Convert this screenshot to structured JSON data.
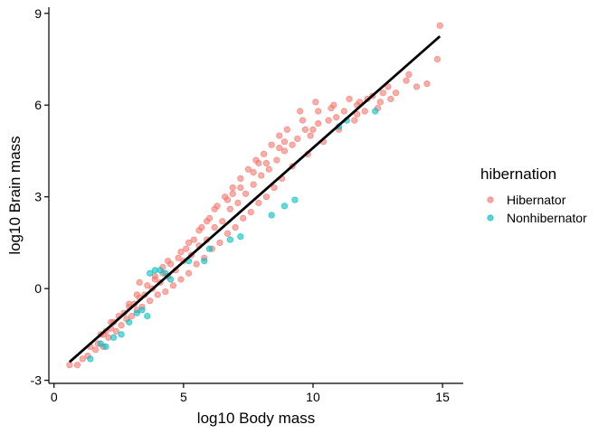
{
  "chart_data": {
    "type": "scatter",
    "title": "",
    "xlabel": "log10 Body mass",
    "ylabel": "log10 Brain mass",
    "xlim": [
      -0.2,
      15.8
    ],
    "ylim": [
      -3.1,
      9.2
    ],
    "xticks": [
      0,
      5,
      10,
      15
    ],
    "yticks": [
      -3,
      0,
      3,
      6,
      9
    ],
    "xtick_labels": [
      "0",
      "5",
      "10",
      "15"
    ],
    "ytick_labels": [
      "-3",
      "0",
      "3",
      "6",
      "9"
    ],
    "grid": false,
    "legend": {
      "title": "hibernation",
      "placement": "right",
      "entries": [
        "Hibernator",
        "Nonhibernator"
      ]
    },
    "series": [
      {
        "name": "Hibernator",
        "color": "#F8766D",
        "points": [
          [
            0.6,
            -2.5
          ],
          [
            0.9,
            -2.5
          ],
          [
            1.1,
            -2.3
          ],
          [
            1.3,
            -2.2
          ],
          [
            1.4,
            -1.9
          ],
          [
            1.6,
            -2.0
          ],
          [
            1.7,
            -1.8
          ],
          [
            1.8,
            -1.5
          ],
          [
            1.9,
            -1.9
          ],
          [
            2.0,
            -1.4
          ],
          [
            2.1,
            -1.6
          ],
          [
            2.2,
            -1.3
          ],
          [
            2.3,
            -1.1
          ],
          [
            2.4,
            -1.4
          ],
          [
            2.5,
            -0.9
          ],
          [
            2.6,
            -1.2
          ],
          [
            2.7,
            -0.8
          ],
          [
            2.8,
            -1.0
          ],
          [
            2.9,
            -0.6
          ],
          [
            3.0,
            -0.9
          ],
          [
            3.1,
            -0.5
          ],
          [
            3.2,
            -0.7
          ],
          [
            3.3,
            -0.3
          ],
          [
            3.4,
            -0.6
          ],
          [
            3.5,
            -0.2
          ],
          [
            3.6,
            0.1
          ],
          [
            3.7,
            -0.4
          ],
          [
            3.8,
            0.0
          ],
          [
            3.9,
            0.3
          ],
          [
            4.0,
            -0.2
          ],
          [
            4.1,
            0.2
          ],
          [
            4.2,
            0.5
          ],
          [
            4.3,
            -0.1
          ],
          [
            4.4,
            0.4
          ],
          [
            4.5,
            0.8
          ],
          [
            4.6,
            0.1
          ],
          [
            4.7,
            0.6
          ],
          [
            4.8,
            1.0
          ],
          [
            4.9,
            0.3
          ],
          [
            5.0,
            0.9
          ],
          [
            5.1,
            1.3
          ],
          [
            5.2,
            0.5
          ],
          [
            5.3,
            1.1
          ],
          [
            5.4,
            1.6
          ],
          [
            5.5,
            0.8
          ],
          [
            5.6,
            1.4
          ],
          [
            5.7,
            2.0
          ],
          [
            5.8,
            1.0
          ],
          [
            5.9,
            1.6
          ],
          [
            6.0,
            2.3
          ],
          [
            6.1,
            1.3
          ],
          [
            6.2,
            2.0
          ],
          [
            6.3,
            2.7
          ],
          [
            6.4,
            1.5
          ],
          [
            6.5,
            2.2
          ],
          [
            6.6,
            3.0
          ],
          [
            6.7,
            1.8
          ],
          [
            6.8,
            2.6
          ],
          [
            6.9,
            3.3
          ],
          [
            7.0,
            2.0
          ],
          [
            7.1,
            2.8
          ],
          [
            7.2,
            3.6
          ],
          [
            7.3,
            2.3
          ],
          [
            7.4,
            3.1
          ],
          [
            7.5,
            3.9
          ],
          [
            7.6,
            2.5
          ],
          [
            7.7,
            3.4
          ],
          [
            7.8,
            4.2
          ],
          [
            7.9,
            2.8
          ],
          [
            8.0,
            3.7
          ],
          [
            8.1,
            4.4
          ],
          [
            8.2,
            3.0
          ],
          [
            8.3,
            3.9
          ],
          [
            8.4,
            4.7
          ],
          [
            8.5,
            3.3
          ],
          [
            8.6,
            4.2
          ],
          [
            8.7,
            5.0
          ],
          [
            8.8,
            3.6
          ],
          [
            8.9,
            4.5
          ],
          [
            9.0,
            5.2
          ],
          [
            9.2,
            4.0
          ],
          [
            9.4,
            4.9
          ],
          [
            9.6,
            5.5
          ],
          [
            9.8,
            4.4
          ],
          [
            10.0,
            5.2
          ],
          [
            10.2,
            5.8
          ],
          [
            10.4,
            4.8
          ],
          [
            10.6,
            5.5
          ],
          [
            10.8,
            6.0
          ],
          [
            11.0,
            5.2
          ],
          [
            11.2,
            5.8
          ],
          [
            11.4,
            6.2
          ],
          [
            11.6,
            5.5
          ],
          [
            11.8,
            6.1
          ],
          [
            12.0,
            5.8
          ],
          [
            12.3,
            6.3
          ],
          [
            12.6,
            6.1
          ],
          [
            12.9,
            6.6
          ],
          [
            13.2,
            6.4
          ],
          [
            13.6,
            6.8
          ],
          [
            14.0,
            6.6
          ],
          [
            14.4,
            6.7
          ],
          [
            14.8,
            7.5
          ],
          [
            14.9,
            8.6
          ],
          [
            12.1,
            6.2
          ],
          [
            11.7,
            5.7
          ],
          [
            10.9,
            5.6
          ],
          [
            9.9,
            5.0
          ],
          [
            8.9,
            4.8
          ],
          [
            7.9,
            4.1
          ],
          [
            6.9,
            3.1
          ],
          [
            5.9,
            2.2
          ],
          [
            4.9,
            1.2
          ],
          [
            3.9,
            0.4
          ],
          [
            2.9,
            -0.5
          ],
          [
            1.9,
            -1.5
          ],
          [
            3.3,
            0.2
          ],
          [
            4.4,
            0.9
          ],
          [
            5.6,
            1.9
          ],
          [
            6.7,
            2.9
          ],
          [
            7.7,
            3.8
          ],
          [
            8.7,
            4.6
          ],
          [
            9.7,
            5.2
          ],
          [
            10.7,
            5.9
          ],
          [
            11.7,
            6.0
          ],
          [
            12.7,
            6.4
          ],
          [
            13.7,
            7.0
          ],
          [
            6.2,
            2.6
          ],
          [
            7.2,
            3.3
          ],
          [
            8.2,
            4.1
          ],
          [
            9.2,
            4.7
          ],
          [
            10.2,
            5.4
          ],
          [
            5.2,
            1.5
          ],
          [
            4.2,
            0.7
          ],
          [
            3.2,
            -0.2
          ],
          [
            2.2,
            -1.1
          ],
          [
            12.5,
            5.9
          ],
          [
            13.0,
            6.2
          ],
          [
            10.1,
            6.1
          ],
          [
            9.5,
            5.8
          ]
        ]
      },
      {
        "name": "Nonhibernator",
        "color": "#00BFC4",
        "points": [
          [
            1.4,
            -2.3
          ],
          [
            1.8,
            -1.8
          ],
          [
            2.0,
            -1.9
          ],
          [
            2.3,
            -1.6
          ],
          [
            2.6,
            -1.5
          ],
          [
            2.9,
            -1.1
          ],
          [
            3.2,
            -0.8
          ],
          [
            3.4,
            -0.7
          ],
          [
            3.6,
            -0.9
          ],
          [
            3.7,
            0.5
          ],
          [
            3.9,
            0.6
          ],
          [
            4.1,
            0.6
          ],
          [
            4.3,
            0.5
          ],
          [
            4.5,
            0.3
          ],
          [
            5.2,
            0.9
          ],
          [
            5.8,
            0.9
          ],
          [
            6.0,
            1.3
          ],
          [
            6.8,
            1.6
          ],
          [
            7.2,
            1.7
          ],
          [
            8.4,
            2.4
          ],
          [
            8.9,
            2.7
          ],
          [
            9.3,
            2.9
          ],
          [
            11.0,
            5.3
          ],
          [
            11.3,
            5.5
          ],
          [
            12.4,
            5.8
          ]
        ]
      }
    ],
    "trend_line": {
      "color": "#000000",
      "points": [
        [
          0.6,
          -2.4
        ],
        [
          14.9,
          8.25
        ]
      ]
    }
  }
}
